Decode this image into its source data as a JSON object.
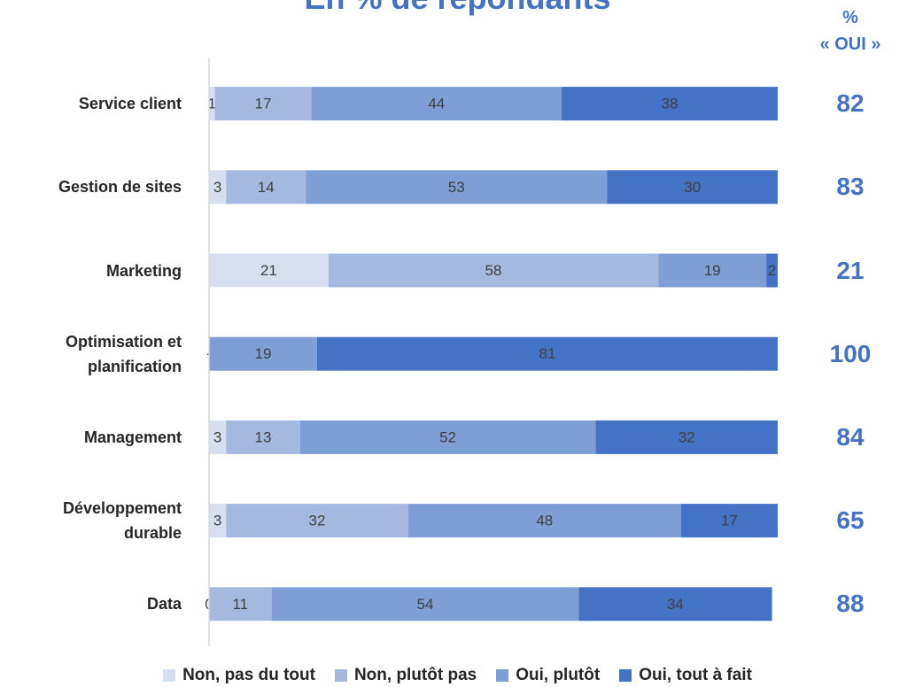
{
  "chart_data": {
    "type": "stacked_barh",
    "title": "En % de répondants",
    "oui_header": [
      "%",
      "« OUI »"
    ],
    "categories": [
      "Service client",
      "Gestion de sites",
      "Marketing",
      "Optimisation et planification",
      "Management",
      "Développement durable",
      "Data"
    ],
    "series": [
      {
        "name": "Non, pas du tout",
        "color": "#d6dff0",
        "values": [
          1,
          3,
          21,
          0,
          3,
          3,
          0
        ],
        "value_labels": [
          "1",
          "3",
          "21",
          "-",
          "3",
          "3",
          "0"
        ]
      },
      {
        "name": "Non, plutôt pas",
        "color": "#a5b9e0",
        "values": [
          17,
          14,
          58,
          null,
          13,
          32,
          11
        ]
      },
      {
        "name": "Oui, plutôt",
        "color": "#7d9fd6",
        "values": [
          44,
          53,
          19,
          19,
          52,
          48,
          54
        ]
      },
      {
        "name": "Oui, tout à fait",
        "color": "#4472c4",
        "values": [
          38,
          30,
          2,
          81,
          32,
          17,
          34
        ]
      }
    ],
    "oui_values": [
      82,
      83,
      21,
      100,
      84,
      65,
      88
    ],
    "oui_color": "#4472c4",
    "xlim": [
      0,
      100
    ]
  }
}
